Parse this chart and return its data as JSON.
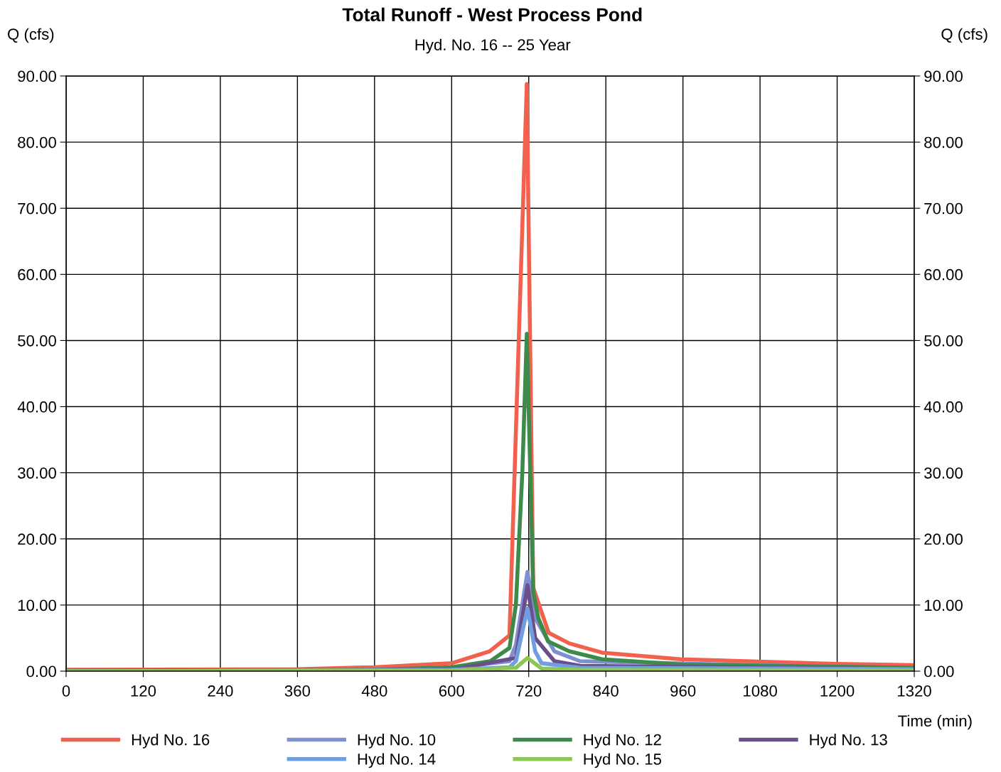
{
  "chart_data": {
    "type": "line",
    "title": "Total Runoff - West Process Pond",
    "subtitle": "Hyd. No. 16 -- 25 Year",
    "xlabel": "Time (min)",
    "ylabel": "Q (cfs)",
    "y2label": "Q (cfs)",
    "xlim": [
      0,
      1320
    ],
    "xticks": [
      0,
      120,
      240,
      360,
      480,
      600,
      720,
      840,
      960,
      1080,
      1200,
      1320
    ],
    "ylim": [
      0,
      90
    ],
    "yticks": [
      {
        "value": 0,
        "label": "0.00"
      },
      {
        "value": 10,
        "label": "10.00"
      },
      {
        "value": 20,
        "label": "20.00"
      },
      {
        "value": 30,
        "label": "30.00"
      },
      {
        "value": 40,
        "label": "40.00"
      },
      {
        "value": 50,
        "label": "50.00"
      },
      {
        "value": 60,
        "label": "60.00"
      },
      {
        "value": 70,
        "label": "70.00"
      },
      {
        "value": 80,
        "label": "80.00"
      },
      {
        "value": 90,
        "label": "90.00"
      }
    ],
    "y2lim": [
      0,
      90
    ],
    "y2ticks": [
      {
        "value": 0,
        "label": "0.00"
      },
      {
        "value": 10,
        "label": "10.00"
      },
      {
        "value": 20,
        "label": "20.00"
      },
      {
        "value": 30,
        "label": "30.00"
      },
      {
        "value": 40,
        "label": "40.00"
      },
      {
        "value": 50,
        "label": "50.00"
      },
      {
        "value": 60,
        "label": "60.00"
      },
      {
        "value": 70,
        "label": "70.00"
      },
      {
        "value": 80,
        "label": "80.00"
      },
      {
        "value": 90,
        "label": "90.00"
      }
    ],
    "grid": true,
    "legend": "bottom",
    "marker": "none",
    "line_style": "solid",
    "series": [
      {
        "name": "Hyd No. 16",
        "color": "#f2614d",
        "x": [
          0,
          360,
          480,
          600,
          659,
          690,
          717,
          727,
          751,
          783,
          834,
          957,
          1198,
          1320
        ],
        "values": [
          0.2,
          0.3,
          0.6,
          1.2,
          3.0,
          5.4,
          88.8,
          12.6,
          5.8,
          4.2,
          2.8,
          1.8,
          1.1,
          0.9
        ]
      },
      {
        "name": "Hyd No. 10",
        "color": "#7f8fd4",
        "x": [
          480,
          600,
          690,
          700,
          718,
          730,
          760,
          800,
          1320
        ],
        "values": [
          0.1,
          0.5,
          1.5,
          4.0,
          15.0,
          8.0,
          3.0,
          1.5,
          0.4
        ]
      },
      {
        "name": "Hyd No. 12",
        "color": "#3d8a4a",
        "x": [
          0,
          480,
          600,
          660,
          690,
          700,
          710,
          717,
          727,
          735,
          750,
          783,
          834,
          960,
          1320
        ],
        "values": [
          0.1,
          0.2,
          0.6,
          1.5,
          3.5,
          10.0,
          30.0,
          51.0,
          12.0,
          8.0,
          4.5,
          3.0,
          1.8,
          1.0,
          0.5
        ]
      },
      {
        "name": "Hyd No. 13",
        "color": "#6b4f8a",
        "x": [
          0,
          600,
          700,
          718,
          730,
          760,
          800,
          1320
        ],
        "values": [
          0.0,
          0.2,
          2.0,
          13.0,
          5.0,
          1.5,
          0.8,
          0.3
        ]
      },
      {
        "name": "Hyd No. 14",
        "color": "#6f9fe0",
        "x": [
          0,
          600,
          690,
          700,
          718,
          730,
          740,
          800,
          1320
        ],
        "values": [
          0.0,
          0.2,
          0.6,
          1.5,
          9.5,
          3.0,
          1.2,
          0.5,
          0.3
        ]
      },
      {
        "name": "Hyd No. 15",
        "color": "#8cc653",
        "x": [
          0,
          600,
          700,
          718,
          740,
          800,
          1320
        ],
        "values": [
          0.0,
          0.1,
          0.5,
          2.0,
          0.4,
          0.2,
          0.1
        ]
      }
    ]
  }
}
